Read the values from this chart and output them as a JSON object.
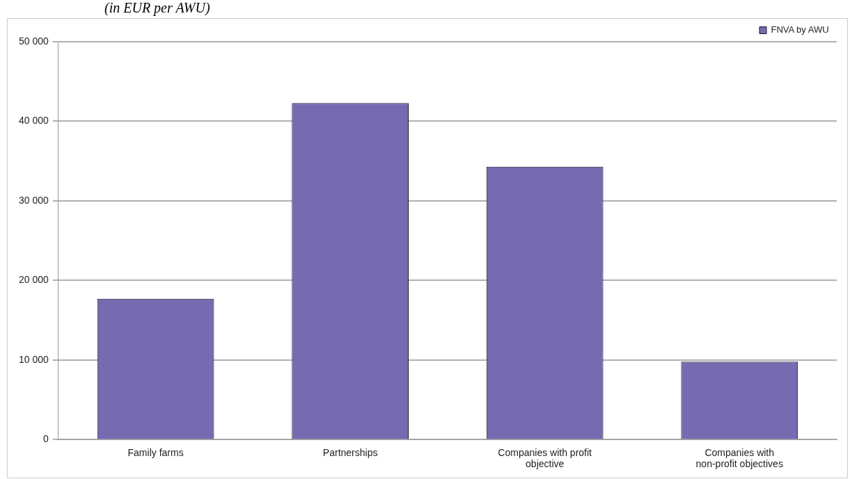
{
  "chart_data": {
    "type": "bar",
    "subtitle": "(in EUR per AWU)",
    "categories": [
      "Family farms",
      "Partnerships",
      "Companies with profit objective",
      "Companies with non-profit objectives"
    ],
    "series": [
      {
        "name": "FNVA by AWU",
        "color": "#756bb1",
        "values": [
          17700,
          42300,
          34300,
          9800
        ]
      }
    ],
    "ylim": [
      0,
      50000
    ],
    "yticks": [
      {
        "value": 0,
        "label": "0"
      },
      {
        "value": 10000,
        "label": "10 000"
      },
      {
        "value": 20000,
        "label": "20 000"
      },
      {
        "value": 30000,
        "label": "30 000"
      },
      {
        "value": 40000,
        "label": "40 000"
      },
      {
        "value": 50000,
        "label": "50 000"
      }
    ],
    "grid": "y",
    "legend": "top right"
  }
}
